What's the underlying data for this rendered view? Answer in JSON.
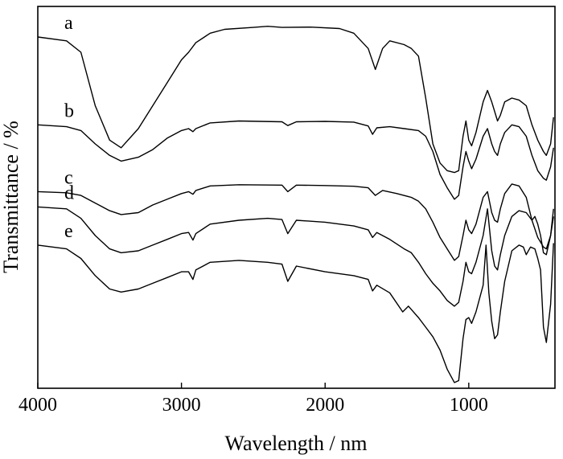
{
  "chart_data": {
    "type": "line",
    "xlabel": "Wavelength / nm",
    "ylabel": "Transmittance / %",
    "xlim": [
      4000,
      400
    ],
    "x_ticks": [
      4000,
      3000,
      2000,
      1000
    ],
    "x_tick_labels": [
      "4000",
      "3000",
      "2000",
      "1000"
    ],
    "y_ticks_shown": false,
    "grid": false,
    "legend": "none",
    "series": [
      {
        "name": "a",
        "points": [
          [
            4000,
            92.0
          ],
          [
            3800,
            91.0
          ],
          [
            3700,
            88.0
          ],
          [
            3600,
            74.0
          ],
          [
            3500,
            65.0
          ],
          [
            3420,
            63.0
          ],
          [
            3300,
            68.0
          ],
          [
            3200,
            74.0
          ],
          [
            3100,
            80.0
          ],
          [
            3000,
            86.0
          ],
          [
            2950,
            88.0
          ],
          [
            2900,
            90.5
          ],
          [
            2800,
            93.0
          ],
          [
            2700,
            94.0
          ],
          [
            2500,
            94.5
          ],
          [
            2400,
            94.8
          ],
          [
            2300,
            94.5
          ],
          [
            2100,
            94.6
          ],
          [
            1900,
            94.2
          ],
          [
            1800,
            93.0
          ],
          [
            1700,
            89.0
          ],
          [
            1650,
            83.5
          ],
          [
            1600,
            89.0
          ],
          [
            1550,
            91.0
          ],
          [
            1450,
            90.0
          ],
          [
            1400,
            89.0
          ],
          [
            1350,
            87.0
          ],
          [
            1300,
            76.0
          ],
          [
            1250,
            64.0
          ],
          [
            1200,
            59.0
          ],
          [
            1150,
            57.0
          ],
          [
            1100,
            56.5
          ],
          [
            1070,
            57.0
          ],
          [
            1040,
            66.0
          ],
          [
            1020,
            70.0
          ],
          [
            1000,
            65.0
          ],
          [
            980,
            63.5
          ],
          [
            950,
            67.0
          ],
          [
            900,
            75.0
          ],
          [
            870,
            78.0
          ],
          [
            840,
            75.0
          ],
          [
            800,
            70.0
          ],
          [
            780,
            71.5
          ],
          [
            750,
            75.0
          ],
          [
            700,
            76.0
          ],
          [
            650,
            75.5
          ],
          [
            600,
            74.0
          ],
          [
            560,
            69.0
          ],
          [
            520,
            65.0
          ],
          [
            480,
            62.0
          ],
          [
            460,
            61.0
          ],
          [
            430,
            64.0
          ],
          [
            410,
            71.0
          ]
        ]
      },
      {
        "name": "b",
        "points": [
          [
            4000,
            69.0
          ],
          [
            3800,
            68.5
          ],
          [
            3700,
            67.5
          ],
          [
            3600,
            64.0
          ],
          [
            3500,
            61.0
          ],
          [
            3420,
            59.5
          ],
          [
            3300,
            60.5
          ],
          [
            3200,
            62.5
          ],
          [
            3100,
            65.5
          ],
          [
            3000,
            67.5
          ],
          [
            2950,
            68.0
          ],
          [
            2920,
            67.2
          ],
          [
            2900,
            68.0
          ],
          [
            2800,
            69.5
          ],
          [
            2600,
            70.0
          ],
          [
            2300,
            69.8
          ],
          [
            2260,
            68.8
          ],
          [
            2200,
            69.8
          ],
          [
            2000,
            69.9
          ],
          [
            1800,
            69.7
          ],
          [
            1700,
            68.7
          ],
          [
            1670,
            66.5
          ],
          [
            1640,
            68.2
          ],
          [
            1550,
            68.5
          ],
          [
            1450,
            68.0
          ],
          [
            1350,
            67.5
          ],
          [
            1300,
            66.0
          ],
          [
            1250,
            62.0
          ],
          [
            1200,
            56.0
          ],
          [
            1150,
            52.5
          ],
          [
            1100,
            49.5
          ],
          [
            1070,
            50.5
          ],
          [
            1040,
            58.0
          ],
          [
            1020,
            62.0
          ],
          [
            1000,
            59.5
          ],
          [
            980,
            57.5
          ],
          [
            950,
            60.0
          ],
          [
            900,
            66.0
          ],
          [
            870,
            68.0
          ],
          [
            840,
            64.0
          ],
          [
            820,
            62.0
          ],
          [
            800,
            61.0
          ],
          [
            780,
            64.0
          ],
          [
            750,
            67.0
          ],
          [
            700,
            69.0
          ],
          [
            650,
            68.5
          ],
          [
            600,
            66.0
          ],
          [
            560,
            61.0
          ],
          [
            520,
            57.0
          ],
          [
            480,
            55.0
          ],
          [
            460,
            54.5
          ],
          [
            430,
            58.0
          ],
          [
            410,
            63.0
          ]
        ]
      },
      {
        "name": "c",
        "points": [
          [
            4000,
            51.5
          ],
          [
            3800,
            51.2
          ],
          [
            3700,
            50.5
          ],
          [
            3600,
            48.5
          ],
          [
            3500,
            46.5
          ],
          [
            3420,
            45.5
          ],
          [
            3300,
            46.0
          ],
          [
            3200,
            48.0
          ],
          [
            3100,
            49.5
          ],
          [
            3000,
            51.0
          ],
          [
            2950,
            51.5
          ],
          [
            2920,
            50.8
          ],
          [
            2900,
            51.8
          ],
          [
            2800,
            53.0
          ],
          [
            2600,
            53.3
          ],
          [
            2300,
            53.2
          ],
          [
            2260,
            51.5
          ],
          [
            2200,
            53.2
          ],
          [
            2000,
            53.1
          ],
          [
            1800,
            52.9
          ],
          [
            1700,
            52.5
          ],
          [
            1650,
            50.5
          ],
          [
            1600,
            51.8
          ],
          [
            1500,
            51.0
          ],
          [
            1400,
            50.0
          ],
          [
            1350,
            49.0
          ],
          [
            1300,
            47.0
          ],
          [
            1250,
            43.5
          ],
          [
            1200,
            39.5
          ],
          [
            1150,
            36.5
          ],
          [
            1100,
            33.5
          ],
          [
            1070,
            34.5
          ],
          [
            1040,
            40.0
          ],
          [
            1020,
            44.0
          ],
          [
            1000,
            41.5
          ],
          [
            980,
            40.5
          ],
          [
            950,
            43.0
          ],
          [
            900,
            50.0
          ],
          [
            870,
            51.5
          ],
          [
            840,
            46.0
          ],
          [
            820,
            44.0
          ],
          [
            800,
            43.5
          ],
          [
            780,
            47.0
          ],
          [
            750,
            51.0
          ],
          [
            700,
            53.5
          ],
          [
            650,
            53.0
          ],
          [
            600,
            50.0
          ],
          [
            560,
            44.0
          ],
          [
            520,
            39.5
          ],
          [
            480,
            37.0
          ],
          [
            460,
            36.5
          ],
          [
            430,
            40.0
          ],
          [
            410,
            45.0
          ]
        ]
      },
      {
        "name": "d",
        "points": [
          [
            4000,
            47.5
          ],
          [
            3800,
            47.0
          ],
          [
            3700,
            44.5
          ],
          [
            3600,
            40.0
          ],
          [
            3500,
            36.5
          ],
          [
            3420,
            35.5
          ],
          [
            3300,
            36.0
          ],
          [
            3200,
            37.5
          ],
          [
            3100,
            39.0
          ],
          [
            3000,
            40.5
          ],
          [
            2950,
            40.8
          ],
          [
            2920,
            38.8
          ],
          [
            2900,
            40.5
          ],
          [
            2800,
            43.0
          ],
          [
            2600,
            44.0
          ],
          [
            2400,
            44.5
          ],
          [
            2300,
            44.2
          ],
          [
            2260,
            40.5
          ],
          [
            2200,
            44.0
          ],
          [
            2000,
            43.5
          ],
          [
            1800,
            42.5
          ],
          [
            1700,
            41.5
          ],
          [
            1670,
            39.5
          ],
          [
            1640,
            40.8
          ],
          [
            1550,
            39.0
          ],
          [
            1450,
            36.5
          ],
          [
            1400,
            35.5
          ],
          [
            1350,
            33.0
          ],
          [
            1300,
            30.0
          ],
          [
            1250,
            27.5
          ],
          [
            1200,
            25.5
          ],
          [
            1150,
            23.0
          ],
          [
            1100,
            21.5
          ],
          [
            1070,
            22.5
          ],
          [
            1040,
            28.0
          ],
          [
            1020,
            33.0
          ],
          [
            1000,
            30.5
          ],
          [
            980,
            30.0
          ],
          [
            950,
            33.0
          ],
          [
            900,
            40.0
          ],
          [
            870,
            47.0
          ],
          [
            840,
            36.0
          ],
          [
            820,
            32.0
          ],
          [
            800,
            31.0
          ],
          [
            780,
            35.0
          ],
          [
            750,
            40.0
          ],
          [
            700,
            45.0
          ],
          [
            650,
            46.5
          ],
          [
            600,
            46.0
          ],
          [
            560,
            44.0
          ],
          [
            540,
            45.0
          ],
          [
            520,
            43.0
          ],
          [
            500,
            40.0
          ],
          [
            480,
            35.5
          ],
          [
            460,
            35.0
          ],
          [
            430,
            40.0
          ],
          [
            410,
            47.0
          ]
        ]
      },
      {
        "name": "e",
        "points": [
          [
            4000,
            37.5
          ],
          [
            3800,
            36.5
          ],
          [
            3700,
            34.0
          ],
          [
            3600,
            29.5
          ],
          [
            3500,
            26.0
          ],
          [
            3420,
            25.2
          ],
          [
            3300,
            26.0
          ],
          [
            3200,
            27.5
          ],
          [
            3100,
            29.0
          ],
          [
            3000,
            30.5
          ],
          [
            2950,
            30.5
          ],
          [
            2920,
            28.5
          ],
          [
            2900,
            31.0
          ],
          [
            2800,
            33.0
          ],
          [
            2600,
            33.5
          ],
          [
            2400,
            33.0
          ],
          [
            2300,
            32.5
          ],
          [
            2260,
            28.0
          ],
          [
            2200,
            32.0
          ],
          [
            2000,
            30.5
          ],
          [
            1800,
            29.5
          ],
          [
            1700,
            28.5
          ],
          [
            1670,
            25.5
          ],
          [
            1640,
            27.0
          ],
          [
            1550,
            25.0
          ],
          [
            1460,
            20.0
          ],
          [
            1420,
            21.5
          ],
          [
            1350,
            18.5
          ],
          [
            1300,
            16.0
          ],
          [
            1250,
            13.5
          ],
          [
            1200,
            10.0
          ],
          [
            1150,
            5.0
          ],
          [
            1100,
            1.5
          ],
          [
            1070,
            2.0
          ],
          [
            1040,
            13.0
          ],
          [
            1020,
            18.0
          ],
          [
            1000,
            18.5
          ],
          [
            980,
            17.0
          ],
          [
            950,
            20.0
          ],
          [
            900,
            27.0
          ],
          [
            880,
            37.5
          ],
          [
            860,
            25.0
          ],
          [
            840,
            17.5
          ],
          [
            820,
            13.0
          ],
          [
            800,
            14.0
          ],
          [
            780,
            20.0
          ],
          [
            750,
            28.0
          ],
          [
            700,
            36.0
          ],
          [
            650,
            37.5
          ],
          [
            620,
            37.0
          ],
          [
            600,
            35.0
          ],
          [
            570,
            37.0
          ],
          [
            540,
            36.5
          ],
          [
            520,
            34.0
          ],
          [
            500,
            31.0
          ],
          [
            480,
            16.0
          ],
          [
            460,
            12.0
          ],
          [
            430,
            22.0
          ],
          [
            410,
            38.0
          ]
        ]
      }
    ]
  }
}
